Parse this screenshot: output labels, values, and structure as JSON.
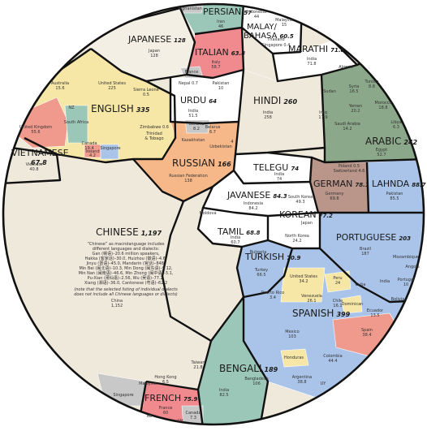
{
  "colors": {
    "chinese": "#efe9dc",
    "japanese": "#f3efe4",
    "english": "#f7e7a6",
    "englishUK": "#ef9a8d",
    "englishSA": "#9bc7b9",
    "englishBlue": "#a9c4e8",
    "italian": "#f08a8f",
    "russian": "#f7b889",
    "hindi": "#efe9dc",
    "arabic": "#8ca88a",
    "german": "#b9958a",
    "lahnda": "#a9c4e8",
    "portuguese": "#a9c4e8",
    "spanish": "#a9c4e8",
    "spanishSpain": "#ef9a8d",
    "spanishYellow": "#f7e7a6",
    "bengali": "#9bc7b9",
    "french": "#f08a8f",
    "turkish": "#a9c4e8",
    "persian": "#9bc7b9",
    "gray": "#c8c8c8",
    "white": "#ffffff"
  },
  "languages": {
    "persian": {
      "name": "PERSIAN",
      "value": "57"
    },
    "malay": {
      "name1": "MALAY/",
      "name2": "BAHASA",
      "value": "60.5"
    },
    "japanese": {
      "name": "JAPANESE",
      "value": "128"
    },
    "italian": {
      "name": "ITALIAN",
      "value": "63.8"
    },
    "marathi": {
      "name": "MARATHI",
      "value": "71.8"
    },
    "english": {
      "name": "ENGLISH",
      "value": "335"
    },
    "urdu": {
      "name": "URDU",
      "value": "64"
    },
    "hindi": {
      "name": "HINDI",
      "value": "260"
    },
    "arabic": {
      "name": "ARABIC",
      "value": "242"
    },
    "vietnamese": {
      "name": "VIETNAMESE",
      "value": "67.8"
    },
    "russian": {
      "name": "RUSSIAN",
      "value": "166"
    },
    "telegu": {
      "name": "TELEGU",
      "value": "74"
    },
    "german": {
      "name": "GERMAN",
      "value": "78.1"
    },
    "lahnda": {
      "name": "LAHNDA",
      "value": "88.7"
    },
    "javanese": {
      "name": "JAVANESE",
      "value": "84.3"
    },
    "korean": {
      "name": "KOREAN",
      "value": "77.2"
    },
    "chinese": {
      "name": "CHINESE",
      "value": "1,197"
    },
    "tamil": {
      "name": "TAMIL",
      "value": "68.8"
    },
    "portuguese": {
      "name": "PORTUGUESE",
      "value": "203"
    },
    "turkish": {
      "name": "TURKISH",
      "value": "70.9"
    },
    "spanish": {
      "name": "SPANISH",
      "value": "399"
    },
    "bengali": {
      "name": "BENGALI",
      "value": "189"
    },
    "french": {
      "name": "FRENCH",
      "value": "75.9"
    }
  },
  "countries": {
    "persian_afg": "Afghanistan",
    "persian_iran": "Iran",
    "persian_iran_v": "46",
    "malay_indonesia": "Indonesia",
    "malay_indonesia_v": "44",
    "malay_malaysia": "Malaysia",
    "malay_malaysia_v": "15",
    "malay_thailand": "Thailand",
    "malay_singapore": "Singapore 0.4",
    "japanese_japan": "Japan",
    "japanese_japan_v": "128",
    "italian_italy": "Italy",
    "italian_italy_v": "58.7",
    "italian_france": "France",
    "marathi_india": "India",
    "marathi_india_v": "71.8",
    "english_us": "United States",
    "english_us_v": "225",
    "english_australia": "Australia",
    "english_australia_v": "15.6",
    "english_nz": "NZ",
    "english_uk": "United Kingdom",
    "english_uk_v": "55.6",
    "english_sa": "South Africa",
    "english_canada": "Canada",
    "english_canada_v": "19.4",
    "english_ireland": "Ireland",
    "english_ireland_v": "4.2",
    "english_singapore": "Singapore",
    "english_sierra": "Sierra Leone",
    "english_sierra_v": "0.5",
    "english_zimbabwe": "Zimbabwe 0.6",
    "english_trinidad": "Trinidad",
    "english_tobago": "& Tobago",
    "urdu_nepal": "Nepal 0.7",
    "urdu_pakistan": "Pakistan",
    "urdu_pakistan_v": "10",
    "urdu_india": "India",
    "urdu_india_v": "51.5",
    "hindi_india": "India",
    "hindi_india_v": "258",
    "arabic_algeria": "Algeria",
    "arabic_syria": "Syria",
    "arabic_syria_v": "16.5",
    "arabic_tunisia": "Tunisia",
    "arabic_tunisia_v": "8.8",
    "arabic_sudan": "Sudan",
    "arabic_yemen": "Yemen",
    "arabic_yemen_v": "20.2",
    "arabic_morocco": "Morocco",
    "arabic_morocco_v": "18.8",
    "arabic_iraq": "Iraq",
    "arabic_iraq_v": "17.9",
    "arabic_saudi": "Saudi Arabia",
    "arabic_saudi_v": "14.2",
    "arabic_libya": "Libya",
    "arabic_libya_v": "6.3",
    "arabic_egypt": "Egypt",
    "arabic_egypt_v": "52.7",
    "russian_ukraine": "Ukraine",
    "russian_ukraine_v": "8.2",
    "russian_belarus": "Belarus",
    "russian_belarus_v": "6.7",
    "russian_kazakhstan": "Kazakhstan",
    "russian_uzbekistan": "Uzbekistan",
    "russian_uzbekistan_v": "4",
    "russian_rf": "Russian Federation",
    "russian_rf_v": "138",
    "telegu_india": "India",
    "telegu_india_v": "74",
    "german_poland": "Poland 0.5",
    "german_switzerland": "Switzerland 4.6",
    "german_germany": "Germany",
    "german_germany_v": "69.8",
    "lahnda_pakistan": "Pakistan",
    "lahnda_pakistan_v": "85.5",
    "javanese_indonesia": "Indonesia",
    "javanese_indonesia_v": "84.2",
    "korean_south": "South Korea",
    "korean_south_v": "49.3",
    "korean_north": "North Korea",
    "korean_north_v": "24.2",
    "korean_japan": "Japan",
    "tamil_moldova": "Moldova",
    "tamil_india": "India",
    "tamil_india_v": "60.7",
    "chinese_note1": "“Chinese” as macrolanguage includes",
    "chinese_note2": "different languages and dialects:",
    "chinese_note3": "Gan (赣语)–20.6 million speakers,",
    "chinese_note4": "Hakka (客家话)–30.0, Huizhou (徽语)–4.6,",
    "chinese_note5": "Jinyu (晋语)–45.0, Mandarin (官话)–848,",
    "chinese_note6": "Min Bei (闽北语)–10.3, Min Dong (闽东语)–9.12,",
    "chinese_note7": "Min Nan (闽南语)–46.6, Min Zhong (闽中语)–3.1,",
    "chinese_note8": "Pu-Xian (莆仙语)–2.56, Wu (吴语)–77.2,",
    "chinese_note9": "Xiang (湘语)–36.0, Cantonese (粤语)–62.2",
    "chinese_note10": "(note that the selected listing of individual dialects",
    "chinese_note11": "does not include all Chinese languages or dialects)",
    "chinese_china": "China",
    "chinese_china_v": "1,152",
    "chinese_taiwan": "Taiwan",
    "chinese_taiwan_v": "21.8",
    "chinese_hk": "Hong Kong",
    "chinese_hk_v": "6.5",
    "chinese_malaysia": "Malaysia",
    "chinese_singapore": "Singapore",
    "vietnamese_vietnam": "Vietnam",
    "vietnamese_vietnam_v": "40.8",
    "portuguese_brazil": "Brazil",
    "portuguese_brazil_v": "187",
    "portuguese_mozambique": "Mozambique",
    "portuguese_angola": "Angola",
    "portuguese_portugal": "Portugal",
    "portuguese_portugal_v": "10",
    "portuguese_india": "India",
    "turkish_bulgaria": "Bulgaria",
    "turkish_turkey": "Turkey",
    "turkish_turkey_v": "66.5",
    "spanish_us": "United States",
    "spanish_us_v": "34.2",
    "spanish_pr": "Puerto Rico",
    "spanish_pr_v": "3.4",
    "spanish_peru": "Peru",
    "spanish_peru_v": "24",
    "spanish_cuba": "Cuba",
    "spanish_venezuela": "Venezuela",
    "spanish_venezuela_v": "26.1",
    "spanish_chile": "Chile",
    "spanish_chile_v": "16.1",
    "spanish_dominican": "Dominican",
    "spanish_ecuador": "Ecuador",
    "spanish_ecuador_v": "13.5",
    "spanish_bolivia": "Bolivia",
    "spanish_mexico": "Mexico",
    "spanish_mexico_v": "103",
    "spanish_spain": "Spain",
    "spanish_spain_v": "38.4",
    "spanish_honduras": "Honduras",
    "spanish_colombia": "Colombia",
    "spanish_colombia_v": "44.4",
    "spanish_argentina": "Argentina",
    "spanish_argentina_v": "38.8",
    "spanish_uy": "UY",
    "bengali_india": "India",
    "bengali_india_v": "82.5",
    "bengali_bangladesh": "Bangladesh",
    "bengali_bangladesh_v": "106",
    "french_france": "France",
    "french_france_v": "60",
    "french_canada": "Canada",
    "french_canada_v": "7.3",
    "french_belgium": "BE",
    "french_ch": "CH"
  }
}
